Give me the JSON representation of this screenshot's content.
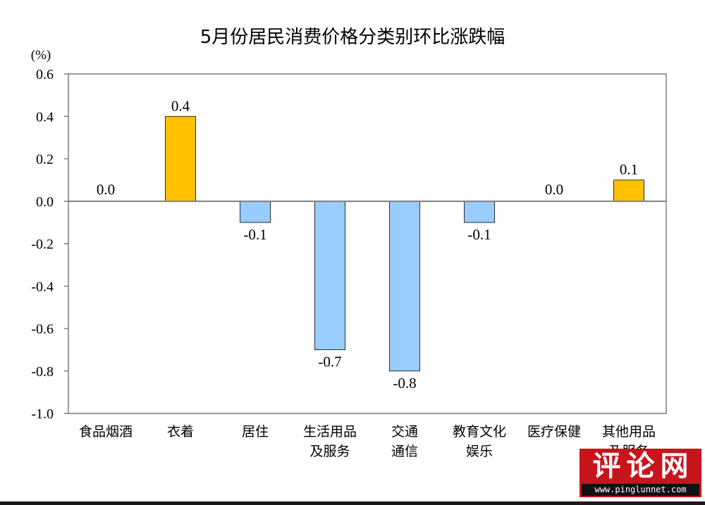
{
  "chart_data": {
    "type": "bar",
    "title": "5月份居民消费价格分类别环比涨跌幅",
    "ylabel": "(%)",
    "xlabel": "",
    "ylim": [
      -1.0,
      0.6
    ],
    "yticks": [
      "0.6",
      "0.4",
      "0.2",
      "0.0",
      "-0.2",
      "-0.4",
      "-0.6",
      "-0.8",
      "-1.0"
    ],
    "ytick_values": [
      0.6,
      0.4,
      0.2,
      0.0,
      -0.2,
      -0.4,
      -0.6,
      -0.8,
      -1.0
    ],
    "categories": [
      [
        "食品烟酒"
      ],
      [
        "衣着"
      ],
      [
        "居住"
      ],
      [
        "生活用品",
        "及服务"
      ],
      [
        "交通",
        "通信"
      ],
      [
        "教育文化",
        "娱乐"
      ],
      [
        "医疗保健"
      ],
      [
        "其他用品",
        "及服务"
      ]
    ],
    "values": [
      0.0,
      0.4,
      -0.1,
      -0.7,
      -0.8,
      -0.1,
      0.0,
      0.1
    ],
    "data_labels": [
      "0.0",
      "0.4",
      "-0.1",
      "-0.7",
      "-0.8",
      "-0.1",
      "0.0",
      "0.1"
    ],
    "grid": false,
    "colors": {
      "positive": "#FFC000",
      "negative": "#99CCFF",
      "zero_line": "#7f7f7f",
      "border": "#7f7f7f"
    }
  },
  "watermark": {
    "logo": "评论网",
    "url": "www.pinglunnet.com"
  }
}
